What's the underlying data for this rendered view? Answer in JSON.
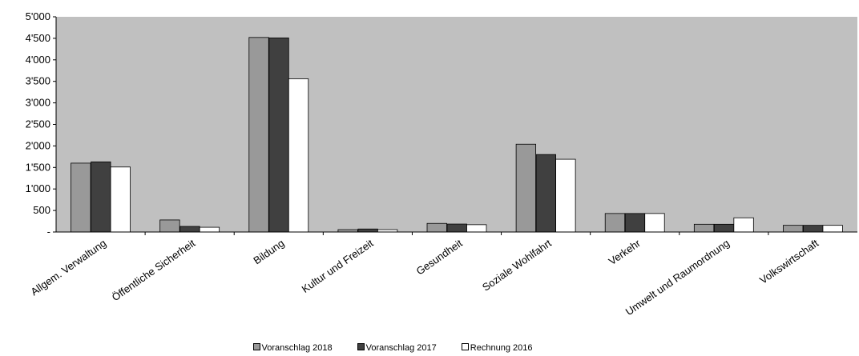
{
  "chart_data": {
    "type": "bar",
    "categories": [
      "Allgem. Verwaltung",
      "Öffentliche Sicherheit",
      "Bildung",
      "Kultur und Freizeit",
      "Gesundheit",
      "Soziale Wohlfahrt",
      "Verkehr",
      "Umwelt und Raumordnung",
      "Volkswirtschaft"
    ],
    "series": [
      {
        "name": "Voranschlag 2018",
        "color": "#999999",
        "values": [
          1600,
          280,
          4520,
          55,
          200,
          2040,
          430,
          180,
          155
        ]
      },
      {
        "name": "Voranschlag 2017",
        "color": "#404040",
        "values": [
          1630,
          130,
          4510,
          70,
          185,
          1800,
          430,
          180,
          155
        ]
      },
      {
        "name": "Rechnung 2016",
        "color": "#ffffff",
        "values": [
          1510,
          110,
          3560,
          55,
          170,
          1690,
          430,
          330,
          155
        ]
      }
    ],
    "yticks": [
      "-",
      "500",
      "1'000",
      "1'500",
      "2'000",
      "2'500",
      "3'000",
      "3'500",
      "4'000",
      "4'500",
      "5'000"
    ],
    "ylim": [
      0,
      5000
    ],
    "plot_background": "#c0c0c0",
    "grid": false,
    "legend_position": "bottom"
  }
}
